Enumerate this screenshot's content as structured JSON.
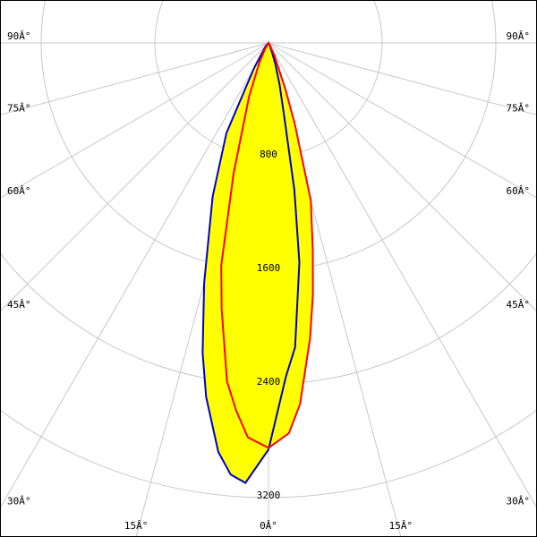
{
  "chart_data": {
    "type": "polar",
    "x": [
      -90,
      -40,
      -30,
      -25,
      -20,
      -15,
      -12,
      -10,
      -7,
      -5,
      -3,
      0,
      3,
      5,
      8,
      10,
      12,
      15,
      18,
      20,
      25,
      30,
      40,
      90
    ],
    "series": [
      {
        "color": "#0000c0",
        "values": [
          0,
          30,
          200,
          700,
          1150,
          1750,
          2230,
          2530,
          2900,
          3050,
          3100,
          2862,
          2350,
          2150,
          1560,
          1050,
          535,
          300,
          150,
          80,
          20,
          0,
          0,
          0
        ]
      },
      {
        "color": "#ff0000",
        "values": [
          0,
          0,
          50,
          150,
          400,
          950,
          1600,
          1900,
          2400,
          2600,
          2780,
          2850,
          2750,
          2550,
          2100,
          1800,
          1500,
          1150,
          600,
          350,
          100,
          20,
          0,
          0
        ]
      }
    ],
    "fill_color": "#ffff00",
    "rlim": [
      0,
      3200
    ],
    "rticks": [
      800,
      1600,
      2400,
      3200
    ],
    "angle_ticks": [
      {
        "value": 0,
        "label": "0Â°"
      },
      {
        "value": 15,
        "label": "15Â°"
      },
      {
        "value": 30,
        "label": "30Â°"
      },
      {
        "value": 45,
        "label": "45Â°"
      },
      {
        "value": 60,
        "label": "60Â°"
      },
      {
        "value": 75,
        "label": "75Â°"
      },
      {
        "value": 90,
        "label": "90Â°"
      }
    ],
    "grid": true
  }
}
